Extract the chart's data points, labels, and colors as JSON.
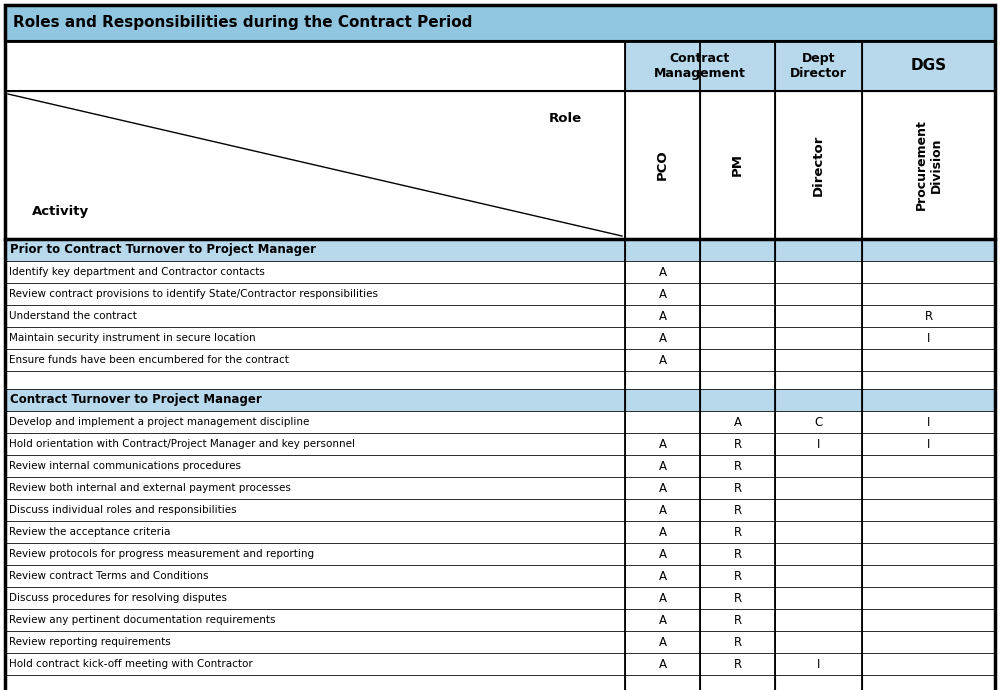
{
  "title": "Roles and Responsibilities during the Contract Period",
  "title_bg": "#91C6E0",
  "header_bg": "#B8D9EC",
  "section_bg": "#B8D9EC",
  "white_bg": "#FFFFFF",
  "border_color": "#000000",
  "sections": [
    {
      "title": "Prior to Contract Turnover to Project Manager",
      "rows": [
        {
          "activity": "Identify key department and Contractor contacts",
          "pco": "A",
          "pm": "",
          "director": "",
          "proc": ""
        },
        {
          "activity": "Review contract provisions to identify State/Contractor responsibilities",
          "pco": "A",
          "pm": "",
          "director": "",
          "proc": ""
        },
        {
          "activity": "Understand the contract",
          "pco": "A",
          "pm": "",
          "director": "",
          "proc": "R"
        },
        {
          "activity": "Maintain security instrument in secure location",
          "pco": "A",
          "pm": "",
          "director": "",
          "proc": "I"
        },
        {
          "activity": "Ensure funds have been encumbered for the contract",
          "pco": "A",
          "pm": "",
          "director": "",
          "proc": ""
        }
      ]
    },
    {
      "title": "Contract Turnover to Project Manager",
      "rows": [
        {
          "activity": "Develop and implement a project management discipline",
          "pco": "",
          "pm": "A",
          "director": "C",
          "proc": "I"
        },
        {
          "activity": "Hold orientation with Contract/Project Manager and key personnel",
          "pco": "A",
          "pm": "R",
          "director": "I",
          "proc": "I"
        },
        {
          "activity": "Review internal communications procedures",
          "pco": "A",
          "pm": "R",
          "director": "",
          "proc": ""
        },
        {
          "activity": "Review both internal and external payment processes",
          "pco": "A",
          "pm": "R",
          "director": "",
          "proc": ""
        },
        {
          "activity": "Discuss individual roles and responsibilities",
          "pco": "A",
          "pm": "R",
          "director": "",
          "proc": ""
        },
        {
          "activity": "Review the acceptance criteria",
          "pco": "A",
          "pm": "R",
          "director": "",
          "proc": ""
        },
        {
          "activity": "Review protocols for progress measurement and reporting",
          "pco": "A",
          "pm": "R",
          "director": "",
          "proc": ""
        },
        {
          "activity": "Review contract Terms and Conditions",
          "pco": "A",
          "pm": "R",
          "director": "",
          "proc": ""
        },
        {
          "activity": "Discuss procedures for resolving disputes",
          "pco": "A",
          "pm": "R",
          "director": "",
          "proc": ""
        },
        {
          "activity": "Review any pertinent documentation requirements",
          "pco": "A",
          "pm": "R",
          "director": "",
          "proc": ""
        },
        {
          "activity": "Review reporting requirements",
          "pco": "A",
          "pm": "R",
          "director": "",
          "proc": ""
        },
        {
          "activity": "Hold contract kick-off meeting with Contractor",
          "pco": "A",
          "pm": "R",
          "director": "I",
          "proc": ""
        }
      ]
    }
  ]
}
